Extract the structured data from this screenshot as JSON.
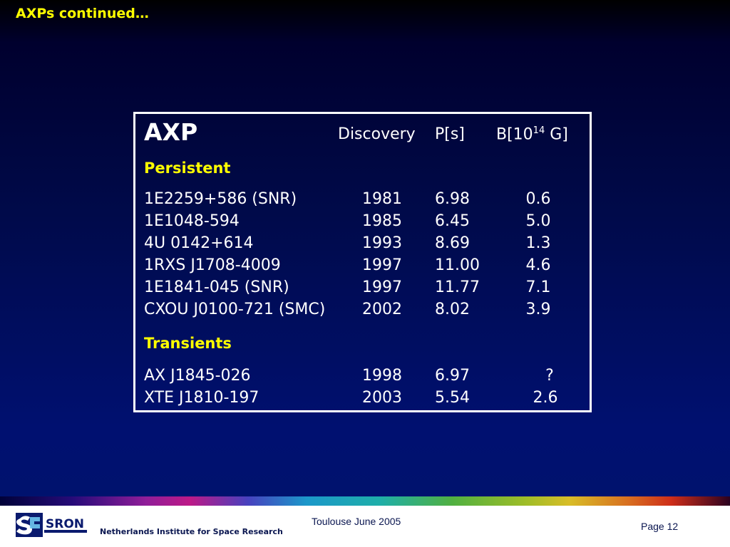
{
  "slide": {
    "title": "AXPs continued…"
  },
  "table": {
    "header": {
      "axp": "AXP",
      "discovery": "Discovery",
      "period": "P[s]",
      "bfield_pre": "B[10",
      "bfield_sup": "14",
      "bfield_post": " G]"
    },
    "persistent_label": "Persistent",
    "persistent": [
      {
        "name": "1E2259+586 (SNR)",
        "year": "1981",
        "period": "6.98",
        "bfield": "0.6"
      },
      {
        "name": "1E1048-594",
        "year": "1985",
        "period": "6.45",
        "bfield": "5.0"
      },
      {
        "name": "4U 0142+614",
        "year": "1993",
        "period": "8.69",
        "bfield": "1.3"
      },
      {
        "name": "1RXS J1708-4009",
        "year": "1997",
        "period": "11.00",
        "bfield": "4.6"
      },
      {
        "name": "1E1841-045 (SNR)",
        "year": "1997",
        "period": "11.77",
        "bfield": "7.1"
      },
      {
        "name": "CXOU J0100-721 (SMC)",
        "year": "2002",
        "period": "8.02",
        "bfield": "3.9"
      }
    ],
    "transients_label": "Transients",
    "transients": [
      {
        "name": "AX J1845-026",
        "year": "1998",
        "period": "6.97",
        "bfield": "?"
      },
      {
        "name": "XTE J1810-197",
        "year": "2003",
        "period": "5.54",
        "bfield": "2.6"
      }
    ]
  },
  "footer": {
    "logo_text": "SRON",
    "organization": "Netherlands Institute for Space Research",
    "conference": "Toulouse June 2005",
    "page": "Page 12"
  }
}
